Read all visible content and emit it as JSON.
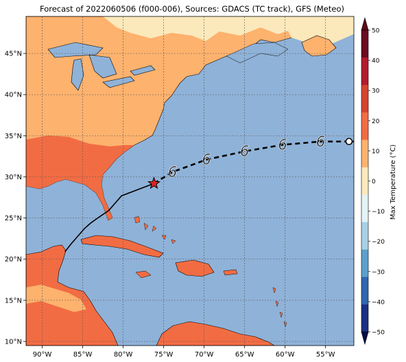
{
  "title": "Forecast of 2022060506 (f000-006), Sources: GDACS (TC track), GFS (Meteo)",
  "map": {
    "lon_range": [
      -92,
      -51.5
    ],
    "lat_range": [
      9.5,
      49.5
    ],
    "x_ticks": [
      {
        "lon": -90,
        "label": "90°W"
      },
      {
        "lon": -85,
        "label": "85°W"
      },
      {
        "lon": -80,
        "label": "80°W"
      },
      {
        "lon": -75,
        "label": "75°W"
      },
      {
        "lon": -70,
        "label": "70°W"
      },
      {
        "lon": -65,
        "label": "65°W"
      },
      {
        "lon": -60,
        "label": "60°W"
      },
      {
        "lon": -55,
        "label": "55°W"
      }
    ],
    "y_ticks": [
      {
        "lat": 45,
        "label": "45°N"
      },
      {
        "lat": 40,
        "label": "40°N"
      },
      {
        "lat": 35,
        "label": "35°N"
      },
      {
        "lat": 30,
        "label": "30°N"
      },
      {
        "lat": 25,
        "label": "25°N"
      },
      {
        "lat": 20,
        "label": "20°N"
      },
      {
        "lat": 15,
        "label": "15°N"
      },
      {
        "lat": 10,
        "label": "10°N"
      }
    ],
    "grid": true,
    "ocean_color": "#8fb2d8"
  },
  "track": {
    "past": [
      [
        -87.2,
        20.9
      ],
      [
        -86.4,
        21.9
      ],
      [
        -85.6,
        22.8
      ],
      [
        -84.8,
        23.7
      ],
      [
        -84.0,
        24.4
      ],
      [
        -83.0,
        25.1
      ],
      [
        -81.8,
        25.9
      ],
      [
        -80.2,
        27.7
      ],
      [
        -76.2,
        29.2
      ]
    ],
    "current_position": [
      -76.2,
      29.2
    ],
    "forecast": [
      [
        -76.2,
        29.2
      ],
      [
        -73.9,
        30.6
      ],
      [
        -69.7,
        32.1
      ],
      [
        -65.0,
        33.1
      ],
      [
        -60.3,
        33.9
      ],
      [
        -55.6,
        34.3
      ],
      [
        -52.1,
        34.3
      ],
      [
        -51.5,
        34.3
      ]
    ],
    "storm_symbols": [
      [
        -73.9,
        30.6
      ],
      [
        -69.7,
        32.1
      ],
      [
        -65.0,
        33.1
      ],
      [
        -60.3,
        33.9
      ],
      [
        -55.6,
        34.3
      ]
    ],
    "end_marker": [
      -52.1,
      34.3
    ],
    "symbol_glyph": "6"
  },
  "colorbar": {
    "label": "Max Temperature (°C)",
    "ticks": [
      "50",
      "40",
      "30",
      "20",
      "10",
      "0",
      "−10",
      "−20",
      "−30",
      "−40",
      "−50"
    ],
    "colors": [
      "#6c0a20",
      "#b31a2c",
      "#d6442f",
      "#f26c43",
      "#fdb26e",
      "#fbe9bb",
      "#e3f3f6",
      "#a7d0e4",
      "#5c9fcb",
      "#2f67b0",
      "#1c2f86"
    ],
    "range": [
      -50,
      50
    ],
    "step": 10
  }
}
